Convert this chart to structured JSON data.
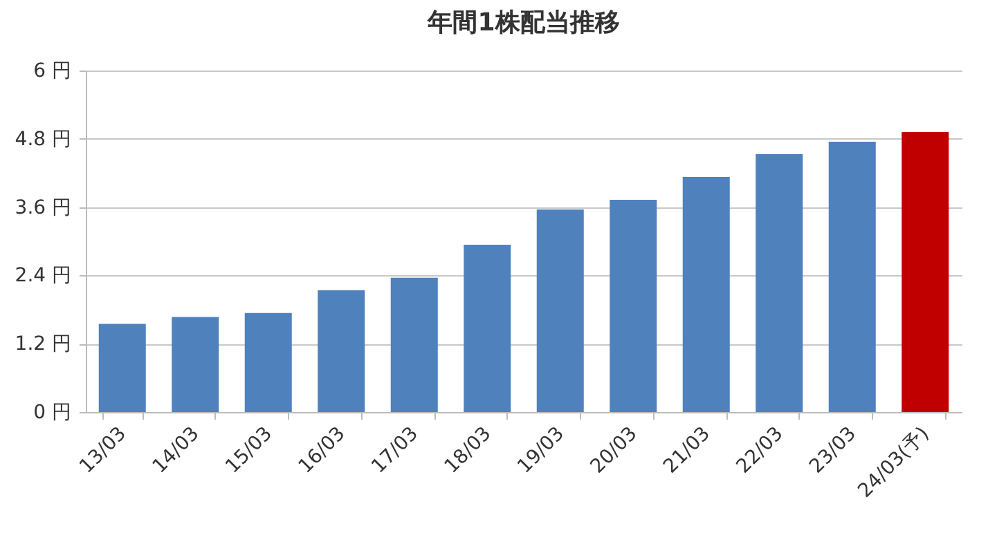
{
  "chart_data": {
    "type": "bar",
    "title": "年間1株配当推移",
    "categories": [
      "13/03",
      "14/03",
      "15/03",
      "16/03",
      "17/03",
      "18/03",
      "19/03",
      "20/03",
      "21/03",
      "22/03",
      "23/03",
      "24/03(予)"
    ],
    "values": [
      1.55,
      1.67,
      1.74,
      2.14,
      2.36,
      2.94,
      3.56,
      3.73,
      4.13,
      4.53,
      4.75,
      4.92
    ],
    "colors": [
      "#4f81bd",
      "#4f81bd",
      "#4f81bd",
      "#4f81bd",
      "#4f81bd",
      "#4f81bd",
      "#4f81bd",
      "#4f81bd",
      "#4f81bd",
      "#4f81bd",
      "#4f81bd",
      "#c00000"
    ],
    "ylim": [
      0,
      6
    ],
    "yticks": [
      {
        "value": 0,
        "label": "0 円"
      },
      {
        "value": 1.2,
        "label": "1.2 円"
      },
      {
        "value": 2.4,
        "label": "2.4 円"
      },
      {
        "value": 3.6,
        "label": "3.6 円"
      },
      {
        "value": 4.8,
        "label": "4.8 円"
      },
      {
        "value": 6,
        "label": "6 円"
      }
    ],
    "grid": "y"
  }
}
